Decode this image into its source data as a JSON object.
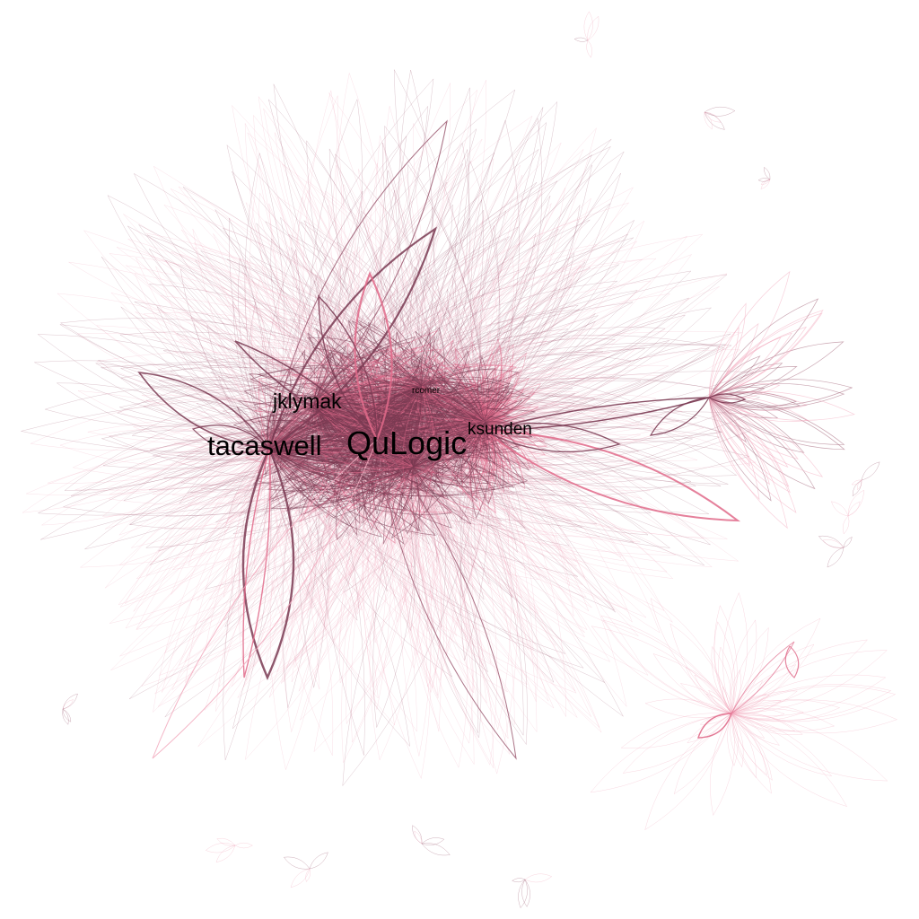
{
  "graph": {
    "type": "force-directed contributor network",
    "colors": {
      "core": "#7a3a52",
      "mid": "#9e5d73",
      "pink": "#e06a8a",
      "light": "#f2a9bd",
      "label": "#000000",
      "background": "#ffffff"
    },
    "labels": [
      {
        "id": "qulogic",
        "text": "QuLogic"
      },
      {
        "id": "tacaswell",
        "text": "tacaswell"
      },
      {
        "id": "jklymak",
        "text": "jklymak"
      },
      {
        "id": "ksunden",
        "text": "ksunden"
      },
      {
        "id": "rcomer",
        "text": "rcomer"
      }
    ]
  }
}
